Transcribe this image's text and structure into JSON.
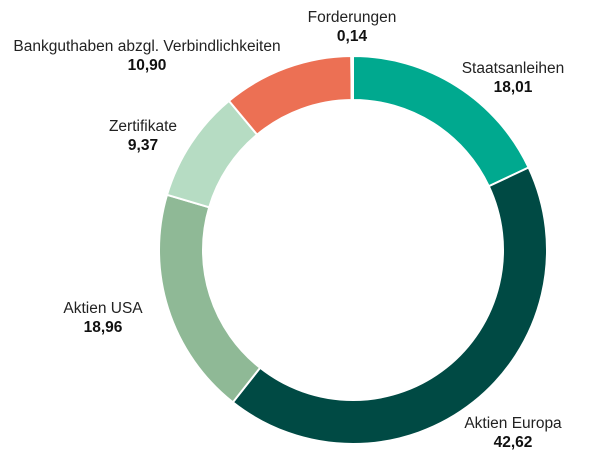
{
  "chart_data": {
    "type": "pie",
    "donut": true,
    "legend": "none",
    "start": "top",
    "direction": "clockwise",
    "slices": [
      {
        "label": "Staatsanleihen",
        "value": 18.01,
        "value_text": "18,01",
        "color": "#00a98f"
      },
      {
        "label": "Aktien Europa",
        "value": 42.62,
        "value_text": "42,62",
        "color": "#004a44"
      },
      {
        "label": "Aktien USA",
        "value": 18.96,
        "value_text": "18,96",
        "color": "#8fb996"
      },
      {
        "label": "Zertifikate",
        "value": 9.37,
        "value_text": "9,37",
        "color": "#b6dcc3"
      },
      {
        "label": "Bankguthaben abzgl. Verbindlichkeiten",
        "value": 10.9,
        "value_text": "10,90",
        "color": "#ec7054"
      },
      {
        "label": "Forderungen",
        "value": 0.14,
        "value_text": "0,14",
        "color": "#5e9c99"
      }
    ]
  }
}
